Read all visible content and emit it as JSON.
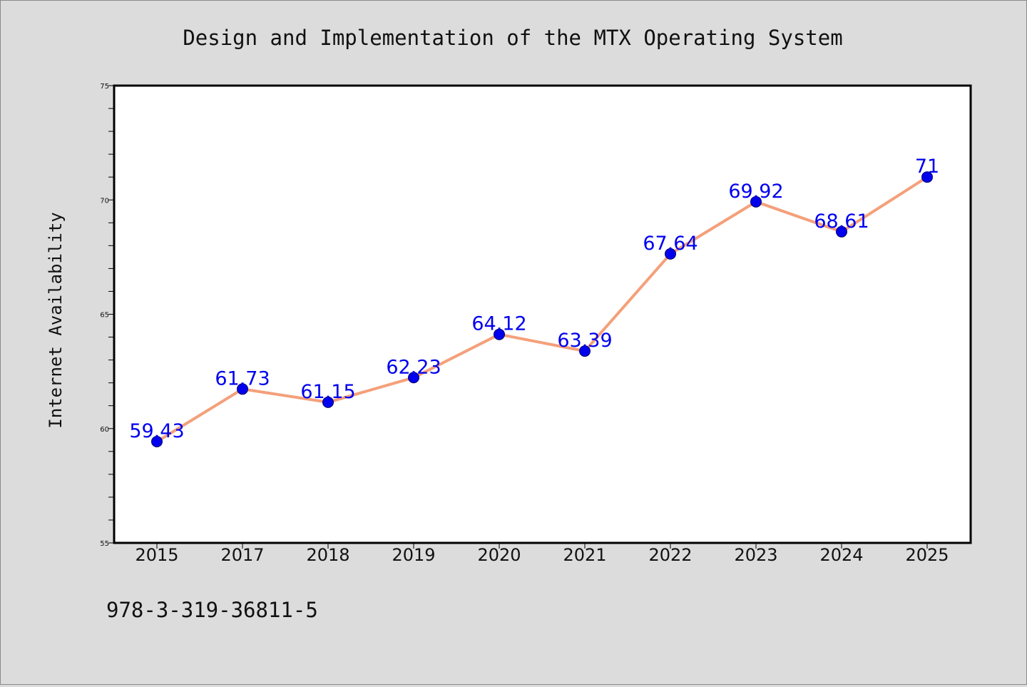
{
  "chart_data": {
    "type": "line",
    "title": "Design and Implementation of the MTX Operating System",
    "xlabel": "",
    "ylabel": "Internet Availability",
    "categories": [
      "2015",
      "2017",
      "2018",
      "2019",
      "2020",
      "2021",
      "2022",
      "2023",
      "2024",
      "2025"
    ],
    "series": [
      {
        "values": [
          59.43,
          61.73,
          61.15,
          62.23,
          64.12,
          63.39,
          67.64,
          69.92,
          68.61,
          71
        ],
        "data_labels": [
          "59.43",
          "61.73",
          "61.15",
          "62.23",
          "64.12",
          "63.39",
          "67.64",
          "69.92",
          "68.61",
          "71"
        ]
      }
    ],
    "ylim": [
      55,
      75
    ],
    "yticks": [
      "55",
      "60",
      "65",
      "70",
      "75"
    ],
    "grid": false,
    "legend": "none",
    "colors": {
      "line": "#f4a07a",
      "marker": "#0000ee",
      "marker_edge": "#000066",
      "data_label": "#0000ee",
      "plot_background": "#ffffff",
      "page_background": "#dcdcdc"
    }
  },
  "footer": {
    "isbn": "978-3-319-36811-5"
  }
}
